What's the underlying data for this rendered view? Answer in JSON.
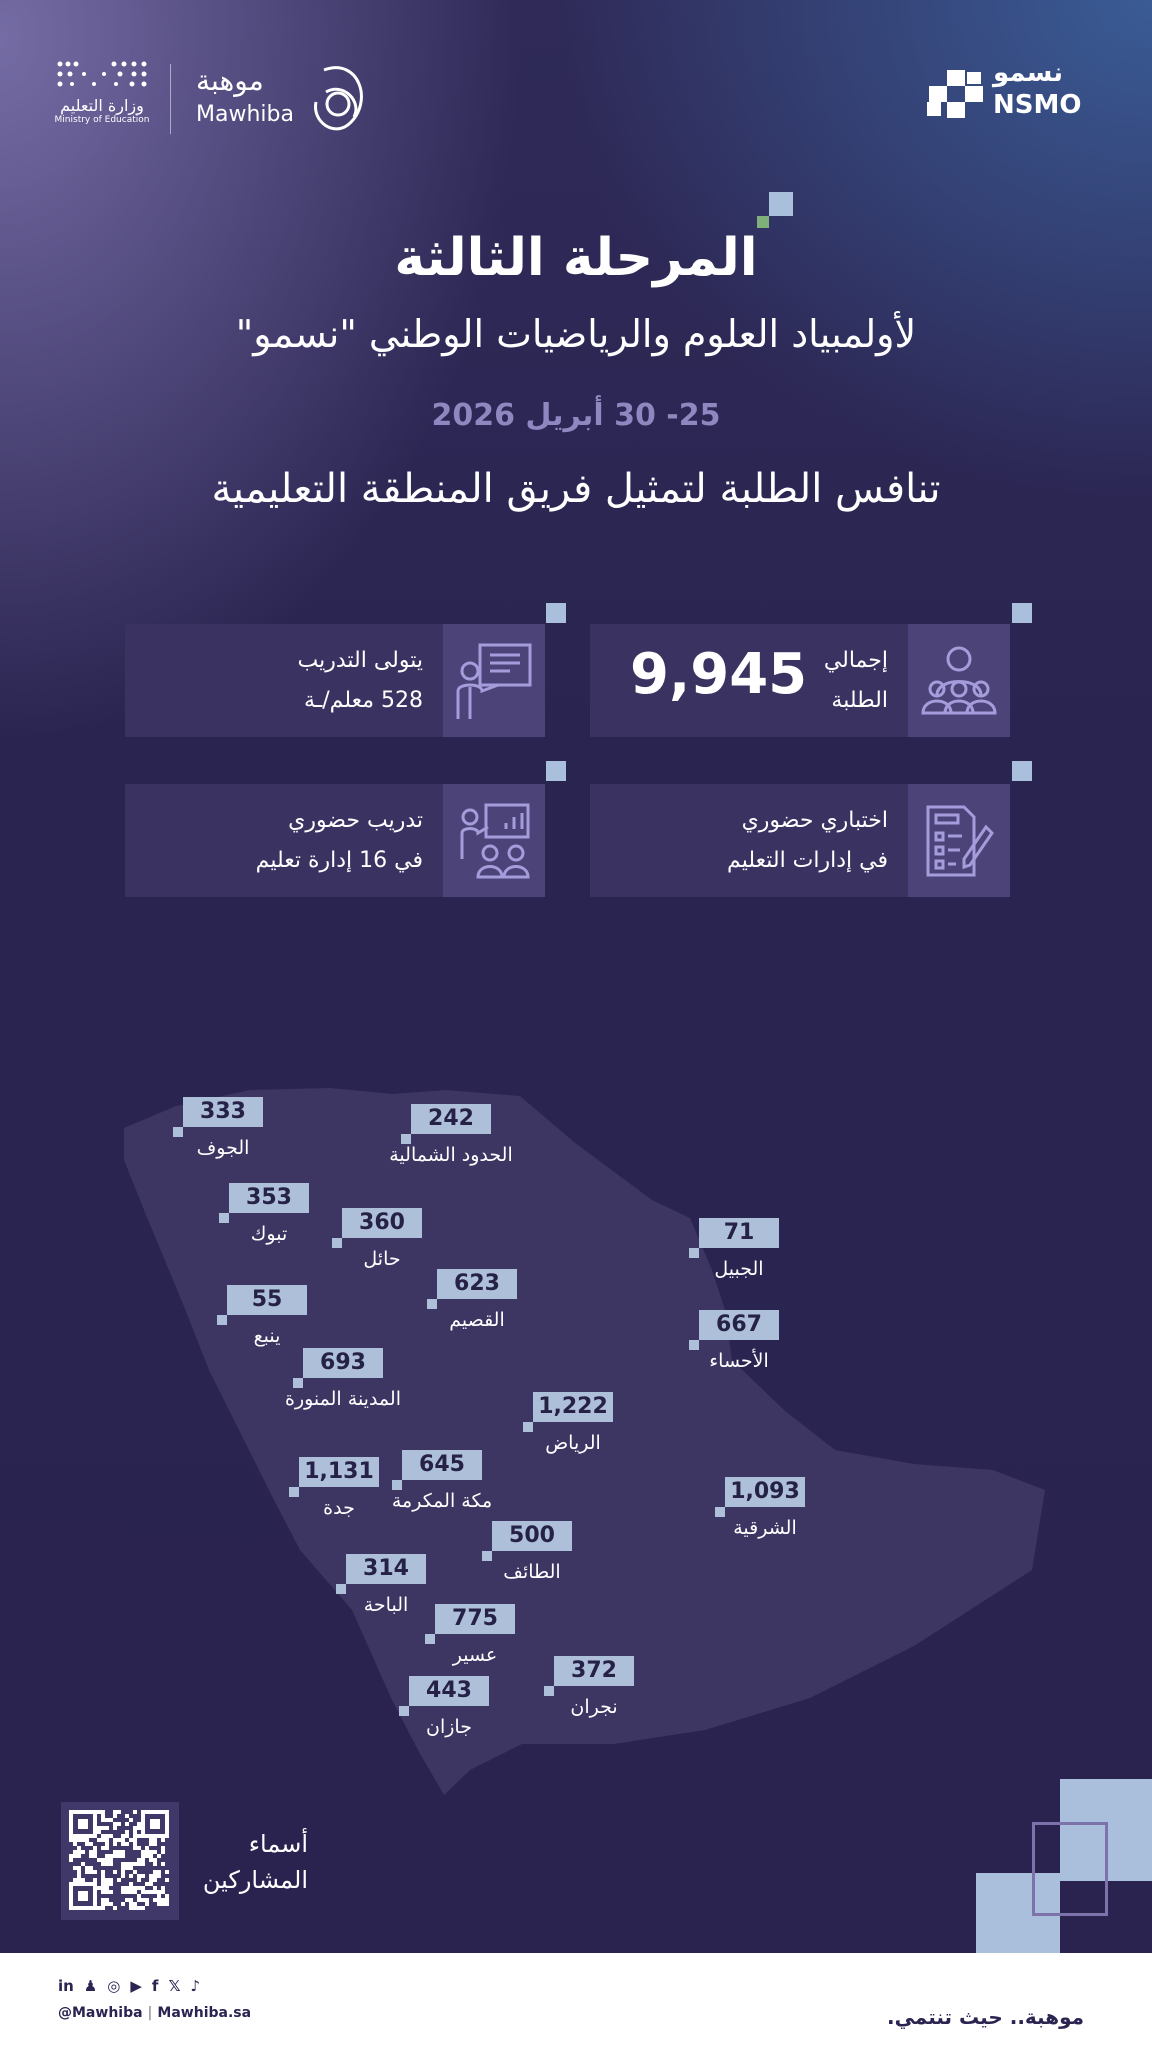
{
  "header": {
    "moe_logo_ar": "وزارة التعليم",
    "moe_logo_en": "Ministry of Education",
    "mawhiba_ar": "موهبة",
    "mawhiba_en": "Mawhiba",
    "nsmo_ar": "نسمو",
    "nsmo_en": "NSMO"
  },
  "title": "المرحلة الثالثة",
  "subtitle": "لأولمبياد العلوم والرياضيات الوطني \"نسمو\"",
  "date": "25- 30 أبريل 2026",
  "tagline": "تنافس الطلبة لتمثيل فريق المنطقة التعليمية",
  "cards": [
    {
      "icon": "students-group-icon",
      "line1": "إجمالي",
      "line2": "الطلبة",
      "value": "9,945"
    },
    {
      "icon": "teacher-board-icon",
      "line1": "يتولى التدريب",
      "line2": "528 معلم/ـة"
    },
    {
      "icon": "exam-checklist-icon",
      "line1": "اختباري حضوري",
      "line2": "في إدارات التعليم"
    },
    {
      "icon": "training-presentation-icon",
      "line1": "تدريب حضوري",
      "line2": "في 16 إدارة تعليم"
    }
  ],
  "regions": [
    {
      "name": "الجوف",
      "value": "333"
    },
    {
      "name": "الحدود الشمالية",
      "value": "242"
    },
    {
      "name": "تبوك",
      "value": "353"
    },
    {
      "name": "حائل",
      "value": "360"
    },
    {
      "name": "الجبيل",
      "value": "71"
    },
    {
      "name": "القصيم",
      "value": "623"
    },
    {
      "name": "ينبع",
      "value": "55"
    },
    {
      "name": "الأحساء",
      "value": "667"
    },
    {
      "name": "المدينة المنورة",
      "value": "693"
    },
    {
      "name": "الرياض",
      "value": "1,222"
    },
    {
      "name": "مكة المكرمة",
      "value": "645"
    },
    {
      "name": "جدة",
      "value": "1,131"
    },
    {
      "name": "الشرقية",
      "value": "1,093"
    },
    {
      "name": "الطائف",
      "value": "500"
    },
    {
      "name": "الباحة",
      "value": "314"
    },
    {
      "name": "عسير",
      "value": "775"
    },
    {
      "name": "نجران",
      "value": "372"
    },
    {
      "name": "جازان",
      "value": "443"
    }
  ],
  "qr": {
    "line1": "أسماء",
    "line2": "المشاركين"
  },
  "footer": {
    "handle": "@Mawhiba",
    "site": "Mawhiba.sa",
    "slogan": "موهبة.. حيث تنتمي.",
    "social": [
      "linkedin-icon",
      "snapchat-icon",
      "instagram-icon",
      "youtube-icon",
      "facebook-icon",
      "x-icon",
      "tiktok-icon"
    ]
  },
  "colors": {
    "background": "#2a2450",
    "accent": "#a9bfdc",
    "date": "#8f88c0",
    "map": "#3d3562"
  }
}
